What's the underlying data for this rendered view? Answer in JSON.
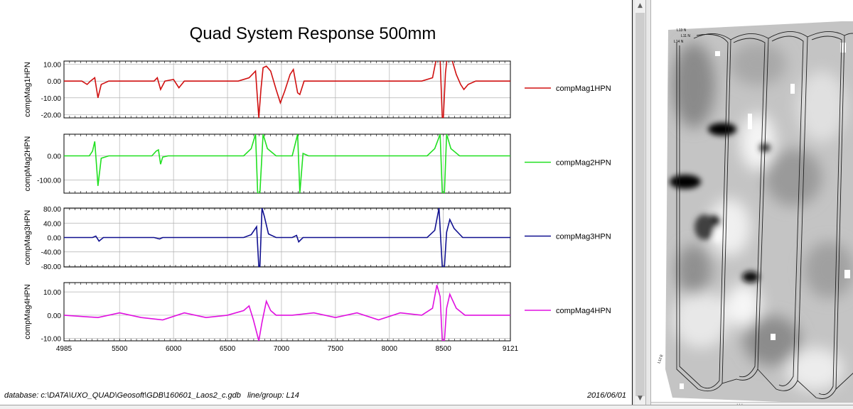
{
  "chart_data": {
    "type": "line",
    "title": "Quad System Response 500mm",
    "xlim": [
      4985,
      9121
    ],
    "x_ticks": [
      "4985",
      "5500",
      "6000",
      "6500",
      "7000",
      "7500",
      "8000",
      "8500",
      "9121"
    ],
    "x_tick_values": [
      4985,
      5500,
      6000,
      6500,
      7000,
      7500,
      8000,
      8500,
      9121
    ],
    "grid": true,
    "panels": [
      {
        "ylabel": "compMag1HPN",
        "legend": "compMag1HPN",
        "color": "#d01010",
        "ylim": [
          -22,
          12
        ],
        "y_ticks": [
          "10.00",
          "0.00",
          "-10.00",
          "-20.00"
        ],
        "y_tick_values": [
          10,
          0,
          -10,
          -20
        ],
        "points": [
          [
            4985,
            0
          ],
          [
            5150,
            0
          ],
          [
            5200,
            -2
          ],
          [
            5230,
            0
          ],
          [
            5270,
            2
          ],
          [
            5300,
            -10
          ],
          [
            5330,
            -2
          ],
          [
            5400,
            0
          ],
          [
            5820,
            0
          ],
          [
            5850,
            2
          ],
          [
            5880,
            -5
          ],
          [
            5920,
            0
          ],
          [
            6000,
            1
          ],
          [
            6050,
            -4
          ],
          [
            6100,
            0
          ],
          [
            6600,
            0
          ],
          [
            6700,
            2
          ],
          [
            6760,
            6
          ],
          [
            6790,
            -22
          ],
          [
            6810,
            -5
          ],
          [
            6830,
            8
          ],
          [
            6860,
            9
          ],
          [
            6900,
            6
          ],
          [
            6950,
            -5
          ],
          [
            6990,
            -13
          ],
          [
            7030,
            -6
          ],
          [
            7080,
            4
          ],
          [
            7110,
            7
          ],
          [
            7150,
            -7
          ],
          [
            7170,
            -8
          ],
          [
            7210,
            0
          ],
          [
            8300,
            0
          ],
          [
            8400,
            2
          ],
          [
            8440,
            15
          ],
          [
            8470,
            13
          ],
          [
            8490,
            -22
          ],
          [
            8500,
            -22
          ],
          [
            8520,
            5
          ],
          [
            8540,
            17
          ],
          [
            8570,
            15
          ],
          [
            8620,
            4
          ],
          [
            8660,
            -2
          ],
          [
            8690,
            -5
          ],
          [
            8730,
            -2
          ],
          [
            8800,
            0
          ],
          [
            9121,
            0
          ]
        ]
      },
      {
        "ylabel": "compMag2HPN",
        "legend": "compMag2HPN",
        "color": "#20e020",
        "ylim": [
          -155,
          90
        ],
        "y_ticks": [
          "0.00",
          "-100.00"
        ],
        "y_tick_values": [
          0,
          -100
        ],
        "points": [
          [
            4985,
            0
          ],
          [
            5220,
            0
          ],
          [
            5250,
            20
          ],
          [
            5270,
            60
          ],
          [
            5290,
            -60
          ],
          [
            5300,
            -125
          ],
          [
            5330,
            -10
          ],
          [
            5400,
            0
          ],
          [
            5800,
            0
          ],
          [
            5840,
            20
          ],
          [
            5860,
            25
          ],
          [
            5880,
            -35
          ],
          [
            5900,
            -5
          ],
          [
            5950,
            0
          ],
          [
            6650,
            0
          ],
          [
            6720,
            30
          ],
          [
            6760,
            90
          ],
          [
            6780,
            -155
          ],
          [
            6800,
            -155
          ],
          [
            6830,
            90
          ],
          [
            6870,
            30
          ],
          [
            6950,
            0
          ],
          [
            7100,
            0
          ],
          [
            7150,
            90
          ],
          [
            7170,
            -155
          ],
          [
            7200,
            10
          ],
          [
            7250,
            0
          ],
          [
            8350,
            0
          ],
          [
            8420,
            30
          ],
          [
            8470,
            90
          ],
          [
            8490,
            -155
          ],
          [
            8510,
            -155
          ],
          [
            8530,
            90
          ],
          [
            8570,
            30
          ],
          [
            8650,
            0
          ],
          [
            9121,
            0
          ]
        ]
      },
      {
        "ylabel": "compMag3HPN",
        "legend": "compMag3HPN",
        "color": "#101090",
        "ylim": [
          -82,
          82
        ],
        "y_ticks": [
          "80.00",
          "40.00",
          "0.00",
          "-40.00",
          "-80.00"
        ],
        "y_tick_values": [
          80,
          40,
          0,
          -40,
          -80
        ],
        "points": [
          [
            4985,
            0
          ],
          [
            5250,
            0
          ],
          [
            5280,
            4
          ],
          [
            5310,
            -10
          ],
          [
            5350,
            0
          ],
          [
            5820,
            0
          ],
          [
            5870,
            -4
          ],
          [
            5900,
            0
          ],
          [
            6650,
            0
          ],
          [
            6720,
            8
          ],
          [
            6770,
            30
          ],
          [
            6790,
            -82
          ],
          [
            6800,
            -82
          ],
          [
            6820,
            82
          ],
          [
            6840,
            60
          ],
          [
            6880,
            10
          ],
          [
            6950,
            0
          ],
          [
            7100,
            0
          ],
          [
            7140,
            6
          ],
          [
            7160,
            -12
          ],
          [
            7200,
            0
          ],
          [
            8350,
            0
          ],
          [
            8420,
            20
          ],
          [
            8460,
            82
          ],
          [
            8490,
            -82
          ],
          [
            8510,
            -82
          ],
          [
            8530,
            15
          ],
          [
            8560,
            50
          ],
          [
            8600,
            25
          ],
          [
            8680,
            0
          ],
          [
            9121,
            0
          ]
        ]
      },
      {
        "ylabel": "compMag4HPN",
        "legend": "compMag4HPN",
        "color": "#e010e0",
        "ylim": [
          -11,
          14
        ],
        "y_ticks": [
          "10.00",
          "0.00",
          "-10.00"
        ],
        "y_tick_values": [
          10,
          0,
          -10
        ],
        "points": [
          [
            4985,
            0
          ],
          [
            5300,
            -1
          ],
          [
            5500,
            1
          ],
          [
            5700,
            -1
          ],
          [
            5900,
            -2
          ],
          [
            6100,
            1
          ],
          [
            6300,
            -1
          ],
          [
            6500,
            0
          ],
          [
            6650,
            2
          ],
          [
            6700,
            4
          ],
          [
            6740,
            -2
          ],
          [
            6790,
            -11
          ],
          [
            6820,
            -3
          ],
          [
            6860,
            6
          ],
          [
            6900,
            2
          ],
          [
            6950,
            0
          ],
          [
            7100,
            0
          ],
          [
            7300,
            1
          ],
          [
            7500,
            -1
          ],
          [
            7700,
            1
          ],
          [
            7900,
            -2
          ],
          [
            8100,
            1
          ],
          [
            8300,
            0
          ],
          [
            8400,
            3
          ],
          [
            8440,
            13
          ],
          [
            8470,
            8
          ],
          [
            8490,
            -11
          ],
          [
            8510,
            -11
          ],
          [
            8530,
            3
          ],
          [
            8560,
            9
          ],
          [
            8620,
            3
          ],
          [
            8700,
            0
          ],
          [
            9121,
            0
          ]
        ]
      }
    ]
  },
  "footer": {
    "database_label": "database:",
    "database_path": "c:\\DATA\\UXO_QUAD\\Geosoft\\GDB\\160601_Laos2_c.gdb",
    "line_label": "line/group:",
    "line_value": "L14",
    "date": "2016/06/01"
  },
  "map": {
    "labels": [
      "L13 N",
      "L11 N",
      "L14 N",
      "L12 E"
    ]
  },
  "scrollbar": {
    "up_glyph": "▲",
    "down_glyph": "▼",
    "grip_glyph": "|||"
  }
}
